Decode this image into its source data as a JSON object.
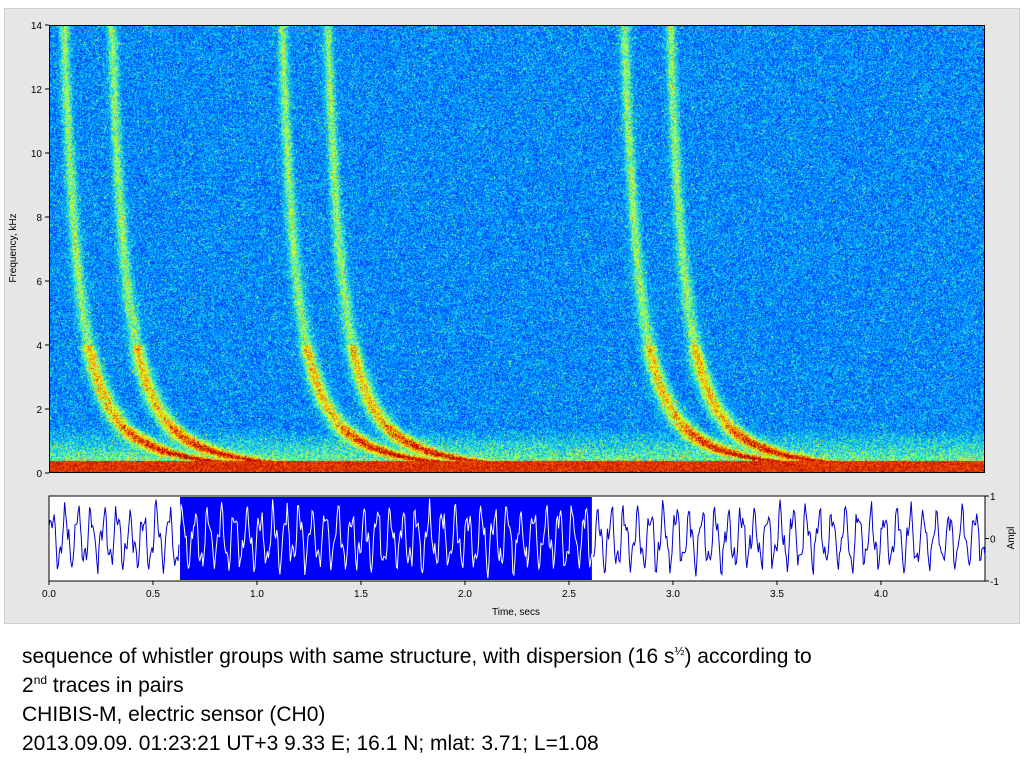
{
  "chart_data": [
    {
      "type": "heatmap",
      "description_kind": "spectrogram",
      "ylabel": "Frequency, kHz",
      "ylim": [
        0,
        14
      ],
      "yticks": [
        0,
        2,
        4,
        6,
        8,
        10,
        12,
        14
      ],
      "xlim": [
        0,
        4.5
      ],
      "colormap": [
        "#00008f",
        "#0030ff",
        "#00c0ff",
        "#70ff90",
        "#ffff00",
        "#ff8000",
        "#c00000"
      ],
      "whistler_groups": [
        {
          "onset_s": 0.1,
          "traces": [
            {
              "t0_s": 0.1,
              "dispersion": 16
            },
            {
              "t0_s": 0.33,
              "dispersion": 16
            }
          ]
        },
        {
          "onset_s": 1.15,
          "traces": [
            {
              "t0_s": 1.15,
              "dispersion": 16
            },
            {
              "t0_s": 1.37,
              "dispersion": 16
            }
          ]
        },
        {
          "onset_s": 2.8,
          "traces": [
            {
              "t0_s": 2.8,
              "dispersion": 16
            },
            {
              "t0_s": 3.02,
              "dispersion": 16
            }
          ]
        }
      ],
      "low_freq_band_khz": [
        0,
        0.3
      ]
    },
    {
      "type": "line",
      "description_kind": "waveform",
      "xlabel": "Time, secs",
      "ylabel": "Ampl",
      "xlim": [
        0,
        4.5
      ],
      "ylim": [
        -1,
        1
      ],
      "xticks": [
        0.0,
        0.5,
        1.0,
        1.5,
        2.0,
        2.5,
        3.0,
        3.5,
        4.0
      ],
      "yticks": [
        -1,
        0,
        1
      ],
      "selection": {
        "start_s": 0.63,
        "end_s": 2.61,
        "color": "#0000ff"
      },
      "trace_color": "#0000cc"
    }
  ],
  "caption": {
    "line1_pre": "sequence of whistler groups with same structure, with dispersion (16 s",
    "line1_sup": "½",
    "line1_post": ") according to",
    "line2_pre": "2",
    "line2_sup": "nd",
    "line2_post": " traces in pairs",
    "line3": "CHIBIS-M, electric sensor (CH0)",
    "line4": "2013.09.09. 01:23:21 UT+3  9.33 E; 16.1 N; mlat: 3.71;  L=1.08"
  }
}
